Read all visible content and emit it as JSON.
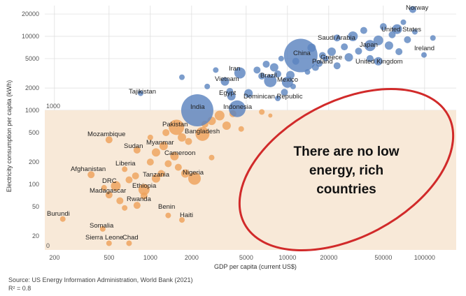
{
  "colors": {
    "rich": "#5b84bf",
    "poor": "#eea15a",
    "shade": "#f8e9d8",
    "grid": "#dcdcdc",
    "callout_ring": "#d12a2a"
  },
  "source": "Source: US Energy Information Administration, World Bank (2021)",
  "r_squared": "R² = 0.8",
  "chart_data": {
    "type": "scatter",
    "title": "",
    "xlabel": "GDP per capita (current US$)",
    "ylabel": "Electricity consumption per capita (kWh)",
    "x_scale": "log",
    "y_scale": "log",
    "xlim": [
      170,
      170000
    ],
    "ylim": [
      13,
      26000
    ],
    "x_ticks": [
      200,
      500,
      1000,
      2000,
      5000,
      10000,
      20000,
      50000,
      100000
    ],
    "x_tick_labels": [
      "200",
      "500",
      "1000",
      "2000",
      "5000",
      "10000",
      "20000",
      "50000",
      "100000"
    ],
    "y_ticks": [
      20,
      50,
      100,
      200,
      500,
      1000,
      2000,
      5000,
      10000,
      20000
    ],
    "y_tick_labels": [
      "20",
      "50",
      "100",
      "200",
      "500",
      "1000",
      "2000",
      "5000",
      "10000",
      "20000"
    ],
    "threshold": {
      "y": 1000,
      "label": "1000"
    },
    "shaded_region_label": "0",
    "grid": true,
    "callout_text": [
      "There are no low",
      "energy, rich",
      "countries"
    ],
    "labeled_points": [
      {
        "name": "Norway",
        "x": 82000,
        "y": 23000,
        "size": 5,
        "group": "above"
      },
      {
        "name": "United States",
        "x": 63000,
        "y": 12500,
        "size": 7,
        "group": "above"
      },
      {
        "name": "Saudi Arabia",
        "x": 23000,
        "y": 9500,
        "size": 5,
        "group": "above"
      },
      {
        "name": "Japan",
        "x": 40000,
        "y": 7500,
        "size": 8,
        "group": "above"
      },
      {
        "name": "Ireland",
        "x": 99000,
        "y": 5600,
        "size": 4,
        "group": "above"
      },
      {
        "name": "China",
        "x": 12500,
        "y": 5500,
        "size": 24,
        "group": "above"
      },
      {
        "name": "Greece",
        "x": 19000,
        "y": 5000,
        "size": 4,
        "group": "above"
      },
      {
        "name": "Poland",
        "x": 17000,
        "y": 4300,
        "size": 5,
        "group": "above"
      },
      {
        "name": "United Kingdom",
        "x": 46000,
        "y": 4600,
        "size": 6,
        "group": "above"
      },
      {
        "name": "Iran",
        "x": 4500,
        "y": 3200,
        "size": 8,
        "group": "above"
      },
      {
        "name": "Brazil",
        "x": 7500,
        "y": 2500,
        "size": 9,
        "group": "above"
      },
      {
        "name": "Vietnam",
        "x": 3500,
        "y": 2450,
        "size": 6,
        "group": "above"
      },
      {
        "name": "Mexico",
        "x": 10000,
        "y": 2400,
        "size": 8,
        "group": "above"
      },
      {
        "name": "Tajikistan",
        "x": 850,
        "y": 1700,
        "size": 4,
        "group": "above"
      },
      {
        "name": "Egypt",
        "x": 3900,
        "y": 1550,
        "size": 6,
        "group": "above"
      },
      {
        "name": "Dominican Republic",
        "x": 8500,
        "y": 1450,
        "size": 4,
        "group": "above"
      },
      {
        "name": "India",
        "x": 2200,
        "y": 1000,
        "size": 23,
        "group": "above"
      },
      {
        "name": "Indonesia",
        "x": 4300,
        "y": 1050,
        "size": 12,
        "group": "above"
      },
      {
        "name": "Pakistan",
        "x": 1550,
        "y": 590,
        "size": 11,
        "group": "below"
      },
      {
        "name": "Bangladesh",
        "x": 2400,
        "y": 480,
        "size": 10,
        "group": "below"
      },
      {
        "name": "Mozambique",
        "x": 500,
        "y": 400,
        "size": 5,
        "group": "below"
      },
      {
        "name": "Myanmar",
        "x": 1250,
        "y": 330,
        "size": 6,
        "group": "below"
      },
      {
        "name": "Sudan",
        "x": 800,
        "y": 290,
        "size": 5,
        "group": "below"
      },
      {
        "name": "Cameroon",
        "x": 1500,
        "y": 240,
        "size": 6,
        "group": "below"
      },
      {
        "name": "Liberia",
        "x": 650,
        "y": 160,
        "size": 4,
        "group": "below"
      },
      {
        "name": "Afghanistan",
        "x": 370,
        "y": 135,
        "size": 5,
        "group": "below"
      },
      {
        "name": "Tanzania",
        "x": 1100,
        "y": 120,
        "size": 6,
        "group": "below"
      },
      {
        "name": "Nigeria",
        "x": 2100,
        "y": 120,
        "size": 9,
        "group": "below"
      },
      {
        "name": "DRC",
        "x": 560,
        "y": 95,
        "size": 7,
        "group": "below"
      },
      {
        "name": "Ethiopia",
        "x": 900,
        "y": 85,
        "size": 8,
        "group": "below"
      },
      {
        "name": "Madagascar",
        "x": 500,
        "y": 72,
        "size": 5,
        "group": "below"
      },
      {
        "name": "Rwanda",
        "x": 800,
        "y": 52,
        "size": 5,
        "group": "below"
      },
      {
        "name": "Benin",
        "x": 1350,
        "y": 38,
        "size": 4,
        "group": "below"
      },
      {
        "name": "Haiti",
        "x": 1700,
        "y": 33,
        "size": 4,
        "group": "below"
      },
      {
        "name": "Burundi",
        "x": 230,
        "y": 34,
        "size": 4,
        "group": "below"
      },
      {
        "name": "Somalia",
        "x": 450,
        "y": 25,
        "size": 4,
        "group": "below"
      },
      {
        "name": "Sierra Leone",
        "x": 500,
        "y": 16,
        "size": 4,
        "group": "below"
      },
      {
        "name": "Chad",
        "x": 700,
        "y": 16,
        "size": 4,
        "group": "below"
      }
    ],
    "unlabeled_points": [
      {
        "x": 1700,
        "y": 2800,
        "size": 4
      },
      {
        "x": 2600,
        "y": 2100,
        "size": 4
      },
      {
        "x": 3000,
        "y": 3500,
        "size": 4
      },
      {
        "x": 3800,
        "y": 1800,
        "size": 5
      },
      {
        "x": 5200,
        "y": 1700,
        "size": 6
      },
      {
        "x": 6000,
        "y": 3500,
        "size": 5
      },
      {
        "x": 6500,
        "y": 2900,
        "size": 5
      },
      {
        "x": 7000,
        "y": 4200,
        "size": 5
      },
      {
        "x": 8000,
        "y": 3800,
        "size": 6
      },
      {
        "x": 8500,
        "y": 3100,
        "size": 5
      },
      {
        "x": 9000,
        "y": 5000,
        "size": 4
      },
      {
        "x": 9500,
        "y": 1750,
        "size": 5
      },
      {
        "x": 10500,
        "y": 3000,
        "size": 6
      },
      {
        "x": 11000,
        "y": 2100,
        "size": 4
      },
      {
        "x": 11500,
        "y": 4600,
        "size": 5
      },
      {
        "x": 14000,
        "y": 3300,
        "size": 4
      },
      {
        "x": 15000,
        "y": 7000,
        "size": 6
      },
      {
        "x": 16000,
        "y": 3800,
        "size": 5
      },
      {
        "x": 18000,
        "y": 5500,
        "size": 5
      },
      {
        "x": 21000,
        "y": 6200,
        "size": 6
      },
      {
        "x": 23000,
        "y": 4000,
        "size": 5
      },
      {
        "x": 26000,
        "y": 7200,
        "size": 5
      },
      {
        "x": 28000,
        "y": 5200,
        "size": 6
      },
      {
        "x": 30000,
        "y": 10000,
        "size": 7
      },
      {
        "x": 33000,
        "y": 6300,
        "size": 5
      },
      {
        "x": 36000,
        "y": 12000,
        "size": 5
      },
      {
        "x": 40000,
        "y": 5000,
        "size": 5
      },
      {
        "x": 46000,
        "y": 8800,
        "size": 7
      },
      {
        "x": 50000,
        "y": 13500,
        "size": 5
      },
      {
        "x": 55000,
        "y": 7500,
        "size": 6
      },
      {
        "x": 58000,
        "y": 10500,
        "size": 5
      },
      {
        "x": 65000,
        "y": 6200,
        "size": 5
      },
      {
        "x": 70000,
        "y": 15500,
        "size": 4
      },
      {
        "x": 75000,
        "y": 9000,
        "size": 5
      },
      {
        "x": 85000,
        "y": 11500,
        "size": 4
      },
      {
        "x": 115000,
        "y": 9500,
        "size": 4
      },
      {
        "x": 6500,
        "y": 950,
        "size": 4
      },
      {
        "x": 7500,
        "y": 850,
        "size": 3
      },
      {
        "x": 2500,
        "y": 650,
        "size": 5
      },
      {
        "x": 2800,
        "y": 720,
        "size": 6
      },
      {
        "x": 3200,
        "y": 850,
        "size": 7
      },
      {
        "x": 3600,
        "y": 620,
        "size": 6
      },
      {
        "x": 4000,
        "y": 900,
        "size": 5
      },
      {
        "x": 4600,
        "y": 560,
        "size": 4
      },
      {
        "x": 1700,
        "y": 430,
        "size": 6
      },
      {
        "x": 1900,
        "y": 380,
        "size": 5
      },
      {
        "x": 1300,
        "y": 500,
        "size": 5
      },
      {
        "x": 1000,
        "y": 430,
        "size": 4
      },
      {
        "x": 1100,
        "y": 270,
        "size": 6
      },
      {
        "x": 1350,
        "y": 190,
        "size": 5
      },
      {
        "x": 1600,
        "y": 170,
        "size": 5
      },
      {
        "x": 2800,
        "y": 230,
        "size": 4
      },
      {
        "x": 1000,
        "y": 200,
        "size": 5
      },
      {
        "x": 1200,
        "y": 140,
        "size": 5
      },
      {
        "x": 1800,
        "y": 140,
        "size": 6
      },
      {
        "x": 780,
        "y": 130,
        "size": 5
      },
      {
        "x": 900,
        "y": 70,
        "size": 5
      },
      {
        "x": 700,
        "y": 115,
        "size": 5
      },
      {
        "x": 600,
        "y": 60,
        "size": 5
      },
      {
        "x": 650,
        "y": 48,
        "size": 4
      },
      {
        "x": 460,
        "y": 90,
        "size": 4
      }
    ]
  }
}
